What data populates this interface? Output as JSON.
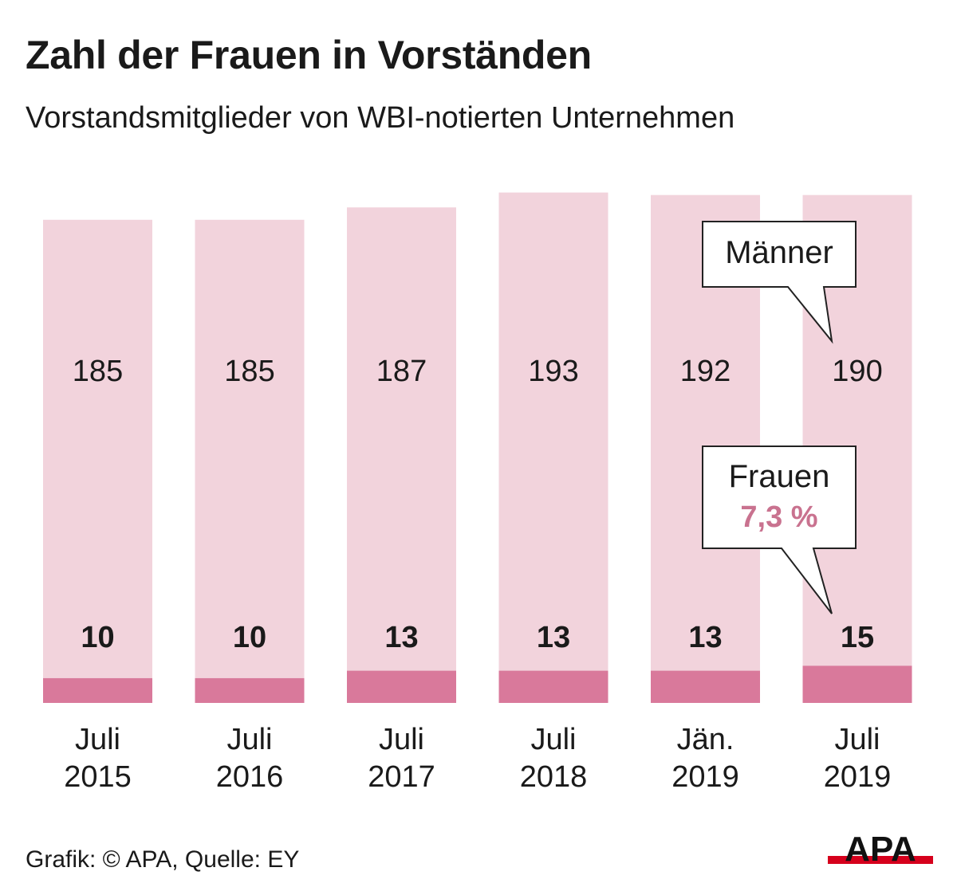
{
  "title": "Zahl der Frauen in Vorständen",
  "subtitle": "Vorstandsmitglieder von WBI-notierten Unternehmen",
  "source": "Grafik: © APA, Quelle: EY",
  "logo_text": "APA",
  "colors": {
    "maenner": "#f2d3dc",
    "frauen": "#d9799b",
    "percent": "#c9728f",
    "text": "#1a1a1a"
  },
  "chart_data": {
    "type": "bar",
    "stacked": true,
    "categories": [
      [
        "Juli",
        "2015"
      ],
      [
        "Juli",
        "2016"
      ],
      [
        "Juli",
        "2017"
      ],
      [
        "Juli",
        "2018"
      ],
      [
        "Jän.",
        "2019"
      ],
      [
        "Juli",
        "2019"
      ]
    ],
    "series": [
      {
        "name": "Frauen",
        "values": [
          10,
          10,
          13,
          13,
          13,
          15
        ]
      },
      {
        "name": "Männer",
        "values": [
          185,
          185,
          187,
          193,
          192,
          190
        ]
      }
    ],
    "annotations": {
      "maenner_label": "Männer",
      "frauen_label": "Frauen",
      "frauen_percent": "7,3 %"
    },
    "ylim": [
      0,
      205
    ]
  }
}
